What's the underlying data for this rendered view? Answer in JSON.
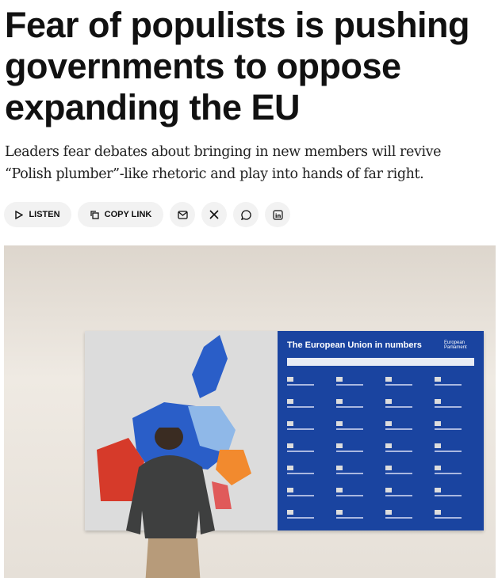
{
  "article": {
    "title": "Fear of populists is pushing governments to oppose expanding the EU",
    "subtitle": "Leaders fear debates about bringing in new members will revive “Polish plumber”-like rhetoric and play into hands of far right."
  },
  "actions": {
    "listen": "LISTEN",
    "copy_link": "COPY LINK",
    "icons": [
      "play-icon",
      "copy-icon",
      "email-icon",
      "x-icon",
      "whatsapp-icon",
      "linkedin-icon"
    ]
  },
  "photo": {
    "board_title": "The European Union in numbers",
    "board_logo": "European Parliament",
    "colors": {
      "board": "#1a44a0",
      "map_blue": "#2a5ec8",
      "map_red": "#d63a2a",
      "map_orange": "#f28a2e"
    }
  }
}
